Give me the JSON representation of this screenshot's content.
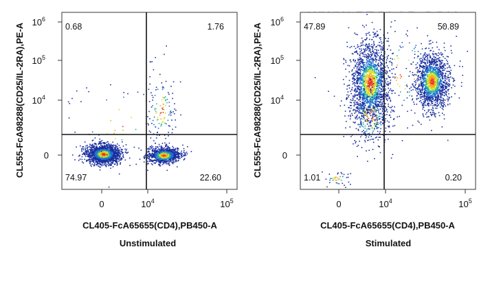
{
  "watermark": "WWW.PTGLAB.COM",
  "chart_data": [
    {
      "type": "scatter",
      "title": "Unstimulated",
      "xlabel": "CL405-FcA65655(CD4),PB450-A",
      "ylabel": "CL555-FcA98288(CD25/IL-2RA),PE-A",
      "x_ticks": [
        {
          "value": "0",
          "label": "0",
          "exp": ""
        },
        {
          "value": "1e4",
          "label": "10",
          "exp": "4"
        },
        {
          "value": "1e5",
          "label": "10",
          "exp": "5"
        }
      ],
      "y_ticks": [
        {
          "value": "0",
          "label": "0",
          "exp": ""
        },
        {
          "value": "1e4",
          "label": "10",
          "exp": "4"
        },
        {
          "value": "1e5",
          "label": "10",
          "exp": "5"
        },
        {
          "value": "1e6",
          "label": "10",
          "exp": "6"
        }
      ],
      "quadrants": {
        "top_left": "0.68",
        "top_right": "1.76",
        "bottom_left": "74.97",
        "bottom_right": "22.60"
      }
    },
    {
      "type": "scatter",
      "title": "Stimulated",
      "xlabel": "CL405-FcA65655(CD4),PB450-A",
      "ylabel": "CL555-FcA98288(CD25/IL-2RA),PE-A",
      "x_ticks": [
        {
          "value": "0",
          "label": "0",
          "exp": ""
        },
        {
          "value": "1e4",
          "label": "10",
          "exp": "4"
        },
        {
          "value": "1e5",
          "label": "10",
          "exp": "5"
        }
      ],
      "y_ticks": [
        {
          "value": "0",
          "label": "0",
          "exp": ""
        },
        {
          "value": "1e4",
          "label": "10",
          "exp": "4"
        },
        {
          "value": "1e5",
          "label": "10",
          "exp": "5"
        },
        {
          "value": "1e6",
          "label": "10",
          "exp": "6"
        }
      ],
      "quadrants": {
        "top_left": "47.89",
        "top_right": "50.89",
        "bottom_left": "1.01",
        "bottom_right": "0.20"
      }
    }
  ]
}
